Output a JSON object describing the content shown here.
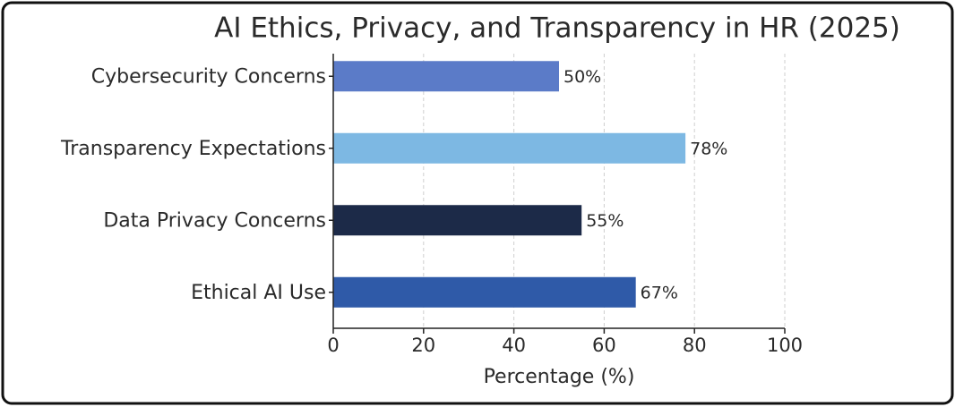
{
  "chart_data": {
    "type": "bar",
    "orientation": "horizontal",
    "title": "AI Ethics, Privacy, and Transparency in HR (2025)",
    "categories": [
      "Cybersecurity Concerns",
      "Transparency Expectations",
      "Data Privacy Concerns",
      "Ethical AI Use"
    ],
    "values": [
      50,
      78,
      55,
      67
    ],
    "value_labels": [
      "50%",
      "78%",
      "55%",
      "67%"
    ],
    "colors": [
      "#5b7bc8",
      "#7db8e3",
      "#1c2a48",
      "#2f5aa8"
    ],
    "xlabel": "Percentage (%)",
    "xlim": [
      0,
      100
    ],
    "xticks": [
      0,
      20,
      40,
      60,
      80,
      100
    ],
    "grid": true
  }
}
